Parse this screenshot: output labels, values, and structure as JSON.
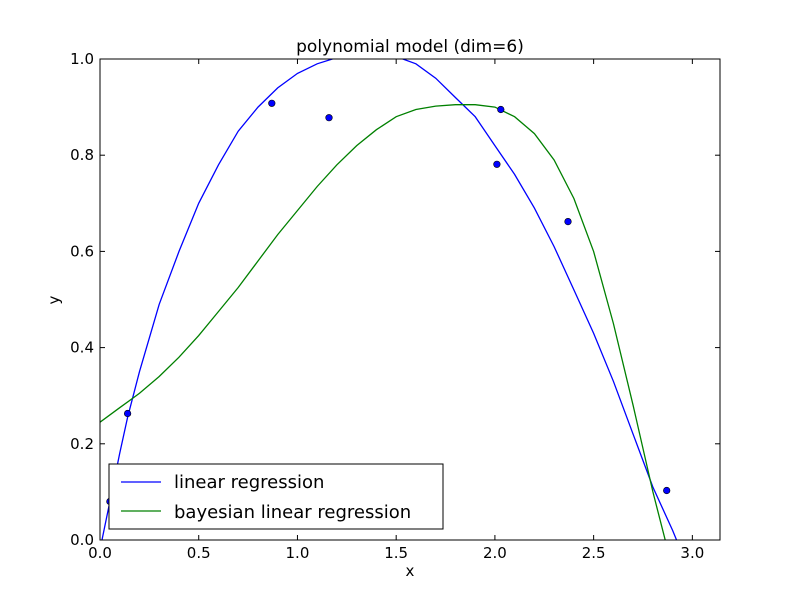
{
  "chart_data": {
    "type": "line",
    "title": "polynomial model (dim=6)",
    "xlabel": "x",
    "ylabel": "y",
    "xlim": [
      0.0,
      3.14
    ],
    "ylim": [
      0.0,
      1.0
    ],
    "xticks": [
      "0.0",
      "0.5",
      "1.0",
      "1.5",
      "2.0",
      "2.5",
      "3.0"
    ],
    "yticks": [
      "0.0",
      "0.2",
      "0.4",
      "0.6",
      "0.8",
      "1.0"
    ],
    "grid": false,
    "legend_position": "lower-left",
    "scatter_points": [
      {
        "x": 0.05,
        "y": 0.08
      },
      {
        "x": 0.14,
        "y": 0.263
      },
      {
        "x": 0.87,
        "y": 0.908
      },
      {
        "x": 1.16,
        "y": 0.878
      },
      {
        "x": 2.01,
        "y": 0.781
      },
      {
        "x": 2.03,
        "y": 0.895
      },
      {
        "x": 2.37,
        "y": 0.662
      },
      {
        "x": 2.87,
        "y": 0.103
      }
    ],
    "scatter_color": "#0000ff",
    "series": [
      {
        "name": "linear regression",
        "color": "#0000ff",
        "x": [
          0.0,
          0.05,
          0.1,
          0.14,
          0.2,
          0.3,
          0.4,
          0.5,
          0.6,
          0.7,
          0.8,
          0.9,
          1.0,
          1.1,
          1.2,
          1.3,
          1.4,
          1.5,
          1.6,
          1.7,
          1.8,
          1.9,
          2.0,
          2.1,
          2.2,
          2.3,
          2.4,
          2.5,
          2.6,
          2.7,
          2.8,
          2.9,
          2.94
        ],
        "y": [
          -0.02,
          0.08,
          0.18,
          0.255,
          0.35,
          0.49,
          0.6,
          0.7,
          0.78,
          0.85,
          0.9,
          0.94,
          0.97,
          0.99,
          1.003,
          1.01,
          1.012,
          1.005,
          0.99,
          0.96,
          0.92,
          0.88,
          0.82,
          0.76,
          0.69,
          0.61,
          0.52,
          0.43,
          0.33,
          0.22,
          0.11,
          0.02,
          -0.02
        ]
      },
      {
        "name": "bayesian linear regression",
        "color": "#008000",
        "x": [
          0.0,
          0.1,
          0.2,
          0.3,
          0.4,
          0.5,
          0.6,
          0.7,
          0.8,
          0.9,
          1.0,
          1.1,
          1.2,
          1.3,
          1.4,
          1.5,
          1.6,
          1.7,
          1.8,
          1.9,
          2.0,
          2.1,
          2.2,
          2.3,
          2.4,
          2.5,
          2.6,
          2.7,
          2.8,
          2.9,
          2.92
        ],
        "y": [
          0.245,
          0.275,
          0.305,
          0.34,
          0.38,
          0.425,
          0.475,
          0.525,
          0.58,
          0.635,
          0.685,
          0.735,
          0.78,
          0.82,
          0.853,
          0.88,
          0.895,
          0.902,
          0.905,
          0.905,
          0.9,
          0.88,
          0.845,
          0.79,
          0.71,
          0.6,
          0.45,
          0.28,
          0.1,
          -0.06,
          -0.08
        ]
      }
    ]
  }
}
